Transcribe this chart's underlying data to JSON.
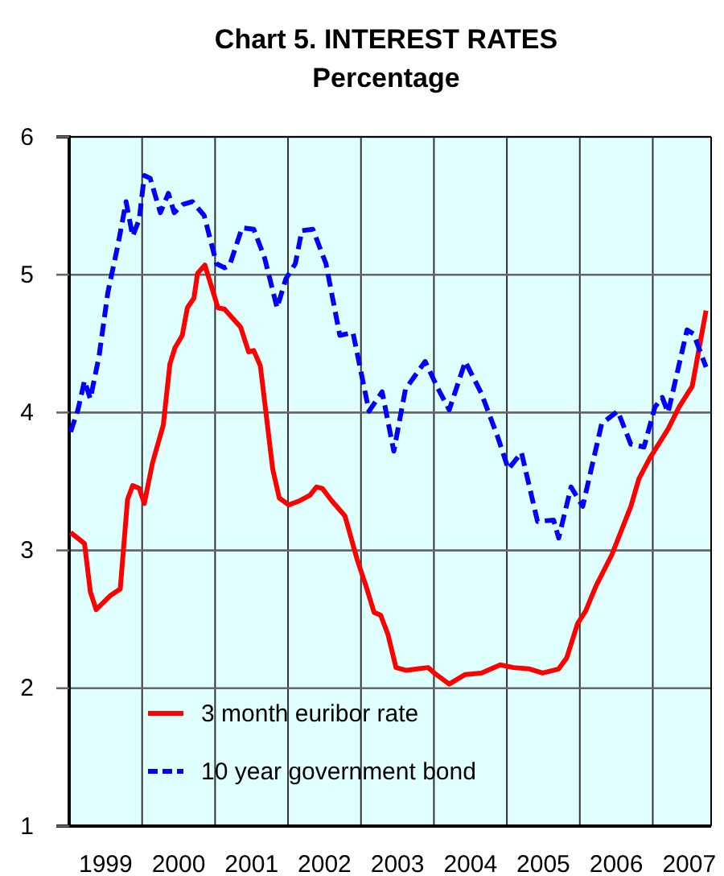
{
  "chart_data": {
    "type": "line",
    "title": "Chart 5. INTEREST RATES",
    "subtitle": "Percentage",
    "xlim": [
      1999,
      2007.8
    ],
    "xticks": [
      {
        "value": 2000,
        "label": null
      },
      {
        "value": 2001,
        "label": null
      },
      {
        "value": 2002,
        "label": null
      },
      {
        "value": 2003,
        "label": null
      },
      {
        "value": 2004,
        "label": null
      },
      {
        "value": 2005,
        "label": null
      },
      {
        "value": 2006,
        "label": null
      },
      {
        "value": 2007,
        "label": null
      },
      {
        "value": 1999.5,
        "label": "1999"
      },
      {
        "value": 2000.5,
        "label": "2000"
      },
      {
        "value": 2001.5,
        "label": "2001"
      },
      {
        "value": 2002.5,
        "label": "2002"
      },
      {
        "value": 2003.5,
        "label": "2003"
      },
      {
        "value": 2004.5,
        "label": "2004"
      },
      {
        "value": 2005.5,
        "label": "2005"
      },
      {
        "value": 2006.5,
        "label": "2006"
      },
      {
        "value": 2007.5,
        "label": "2007"
      }
    ],
    "ylim": [
      1,
      6
    ],
    "yticks": [
      1,
      2,
      3,
      4,
      5,
      6
    ],
    "grid": true,
    "legend": "bottom left",
    "marker": "none",
    "series": [
      {
        "name": "3 month euribor rate",
        "color": "#ff0000",
        "line_style": "solid",
        "x": [
          1999.02,
          1999.21,
          1999.29,
          1999.37,
          1999.56,
          1999.7,
          1999.8,
          1999.87,
          1999.96,
          2000.03,
          2000.14,
          2000.29,
          2000.38,
          2000.45,
          2000.55,
          2000.62,
          2000.71,
          2000.76,
          2000.86,
          2001.04,
          2001.13,
          2001.35,
          2001.46,
          2001.53,
          2001.62,
          2001.79,
          2001.88,
          2002.01,
          2002.16,
          2002.3,
          2002.39,
          2002.47,
          2002.6,
          2002.78,
          2002.95,
          2003.07,
          2003.18,
          2003.27,
          2003.37,
          2003.48,
          2003.62,
          2003.77,
          2003.92,
          2004.03,
          2004.21,
          2004.43,
          2004.65,
          2004.91,
          2005.09,
          2005.31,
          2005.49,
          2005.71,
          2005.82,
          2005.97,
          2006.08,
          2006.22,
          2006.44,
          2006.7,
          2006.81,
          2006.96,
          2007.21,
          2007.36,
          2007.54,
          2007.73
        ],
        "values": [
          3.13,
          3.05,
          2.7,
          2.57,
          2.67,
          2.72,
          3.37,
          3.47,
          3.45,
          3.34,
          3.63,
          3.91,
          4.35,
          4.47,
          4.56,
          4.76,
          4.83,
          5.01,
          5.07,
          4.76,
          4.75,
          4.62,
          4.44,
          4.45,
          4.34,
          3.59,
          3.38,
          3.33,
          3.36,
          3.4,
          3.46,
          3.45,
          3.36,
          3.25,
          2.93,
          2.74,
          2.55,
          2.53,
          2.39,
          2.15,
          2.13,
          2.14,
          2.15,
          2.1,
          2.03,
          2.1,
          2.11,
          2.17,
          2.15,
          2.14,
          2.11,
          2.14,
          2.22,
          2.47,
          2.56,
          2.74,
          2.97,
          3.32,
          3.52,
          3.67,
          3.88,
          4.04,
          4.19,
          4.74
        ]
      },
      {
        "name": "10 year government bond",
        "color": "#0000ff",
        "line_style": "dashed",
        "x": [
          1999.02,
          1999.12,
          1999.21,
          1999.29,
          1999.41,
          1999.53,
          1999.67,
          1999.78,
          1999.87,
          1999.96,
          2000.03,
          2000.11,
          2000.25,
          2000.36,
          2000.44,
          2000.56,
          2000.69,
          2000.85,
          2001.02,
          2001.13,
          2001.2,
          2001.37,
          2001.53,
          2001.68,
          2001.85,
          2001.97,
          2002.1,
          2002.19,
          2002.34,
          2002.52,
          2002.71,
          2002.89,
          2003.11,
          2003.29,
          2003.45,
          2003.61,
          2003.88,
          2004.06,
          2004.21,
          2004.43,
          2004.65,
          2004.87,
          2005.02,
          2005.2,
          2005.42,
          2005.64,
          2005.71,
          2005.88,
          2006.04,
          2006.3,
          2006.52,
          2006.7,
          2006.88,
          2007.03,
          2007.13,
          2007.21,
          2007.47,
          2007.56,
          2007.73
        ],
        "values": [
          3.86,
          4.02,
          4.23,
          4.1,
          4.41,
          4.87,
          5.22,
          5.53,
          5.28,
          5.4,
          5.72,
          5.7,
          5.45,
          5.59,
          5.45,
          5.51,
          5.53,
          5.43,
          5.08,
          5.05,
          5.07,
          5.34,
          5.33,
          5.12,
          4.76,
          4.97,
          5.08,
          5.32,
          5.33,
          5.08,
          4.56,
          4.58,
          4.01,
          4.15,
          3.72,
          4.17,
          4.37,
          4.17,
          4.02,
          4.37,
          4.14,
          3.83,
          3.59,
          3.71,
          3.21,
          3.22,
          3.09,
          3.46,
          3.32,
          3.92,
          4.01,
          3.77,
          3.75,
          4.04,
          4.11,
          4.0,
          4.6,
          4.57,
          4.33
        ]
      }
    ]
  }
}
